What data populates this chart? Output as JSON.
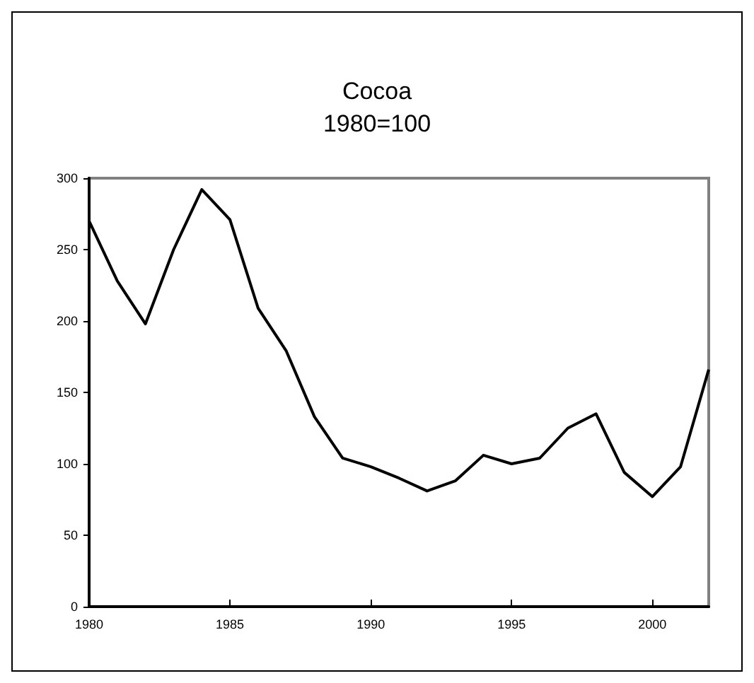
{
  "chart_data": {
    "type": "line",
    "title": "Cocoa",
    "subtitle": "1980=100",
    "x": [
      1980,
      1981,
      1982,
      1983,
      1984,
      1985,
      1986,
      1987,
      1988,
      1989,
      1990,
      1991,
      1992,
      1993,
      1994,
      1995,
      1996,
      1997,
      1998,
      1999,
      2000,
      2001,
      2002
    ],
    "series": [
      {
        "color": "#000000",
        "values": [
          270,
          228,
          198,
          250,
          292,
          271,
          209,
          179,
          133,
          104,
          98,
          90,
          81,
          88,
          106,
          100,
          104,
          125,
          135,
          94,
          77,
          98,
          166
        ]
      }
    ],
    "xlim": [
      1980,
      2002
    ],
    "xticks": [
      1980,
      1985,
      1990,
      1995,
      2000
    ],
    "ylim": [
      0,
      300
    ],
    "yticks": [
      0,
      50,
      100,
      150,
      200,
      250,
      300
    ],
    "grid": false,
    "marker": "none",
    "line_style": "solid"
  }
}
